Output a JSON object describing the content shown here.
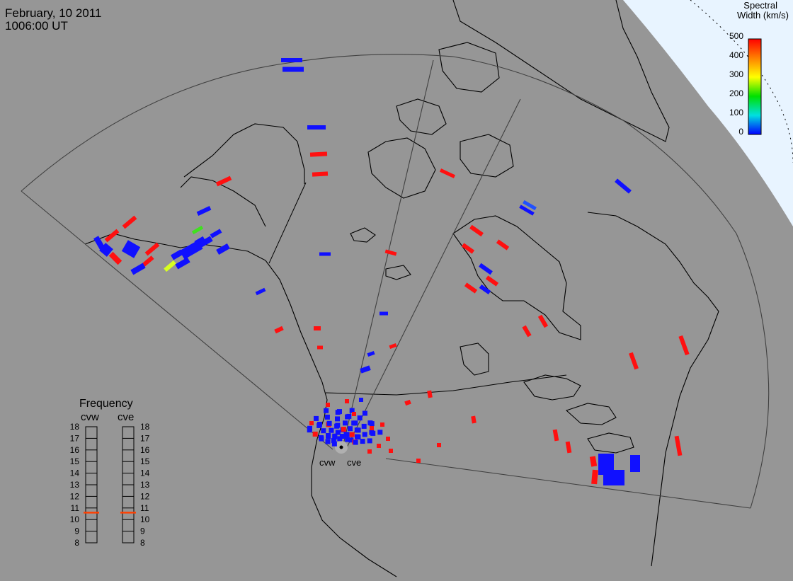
{
  "header": {
    "date": "February, 10 2011",
    "time": "1006:00 UT"
  },
  "radars": {
    "west": "cvw",
    "east": "cve"
  },
  "colorbar": {
    "title_line1": "Spectral",
    "title_line2": "Width (km/s)",
    "ticks": [
      "500",
      "400",
      "300",
      "200",
      "100",
      "0"
    ],
    "range": [
      0,
      500
    ],
    "colors": [
      "#ff0000",
      "#ff8000",
      "#ffff00",
      "#00e000",
      "#00e0e0",
      "#0000ff"
    ]
  },
  "frequency_panel": {
    "title": "Frequency",
    "left_label": "cvw",
    "right_label": "cve",
    "scale": [
      "18",
      "17",
      "16",
      "15",
      "14",
      "13",
      "12",
      "11",
      "10",
      "9",
      "8"
    ],
    "cvw_value_mhz": 10.6,
    "cve_value_mhz": 10.6,
    "marker_color": "#ff4000"
  },
  "colors": {
    "ocean": "#969696",
    "land_line": "#000000",
    "scatter_low": "#1010ff",
    "scatter_high": "#ff1010",
    "polar_night": "#e8f4ff"
  }
}
